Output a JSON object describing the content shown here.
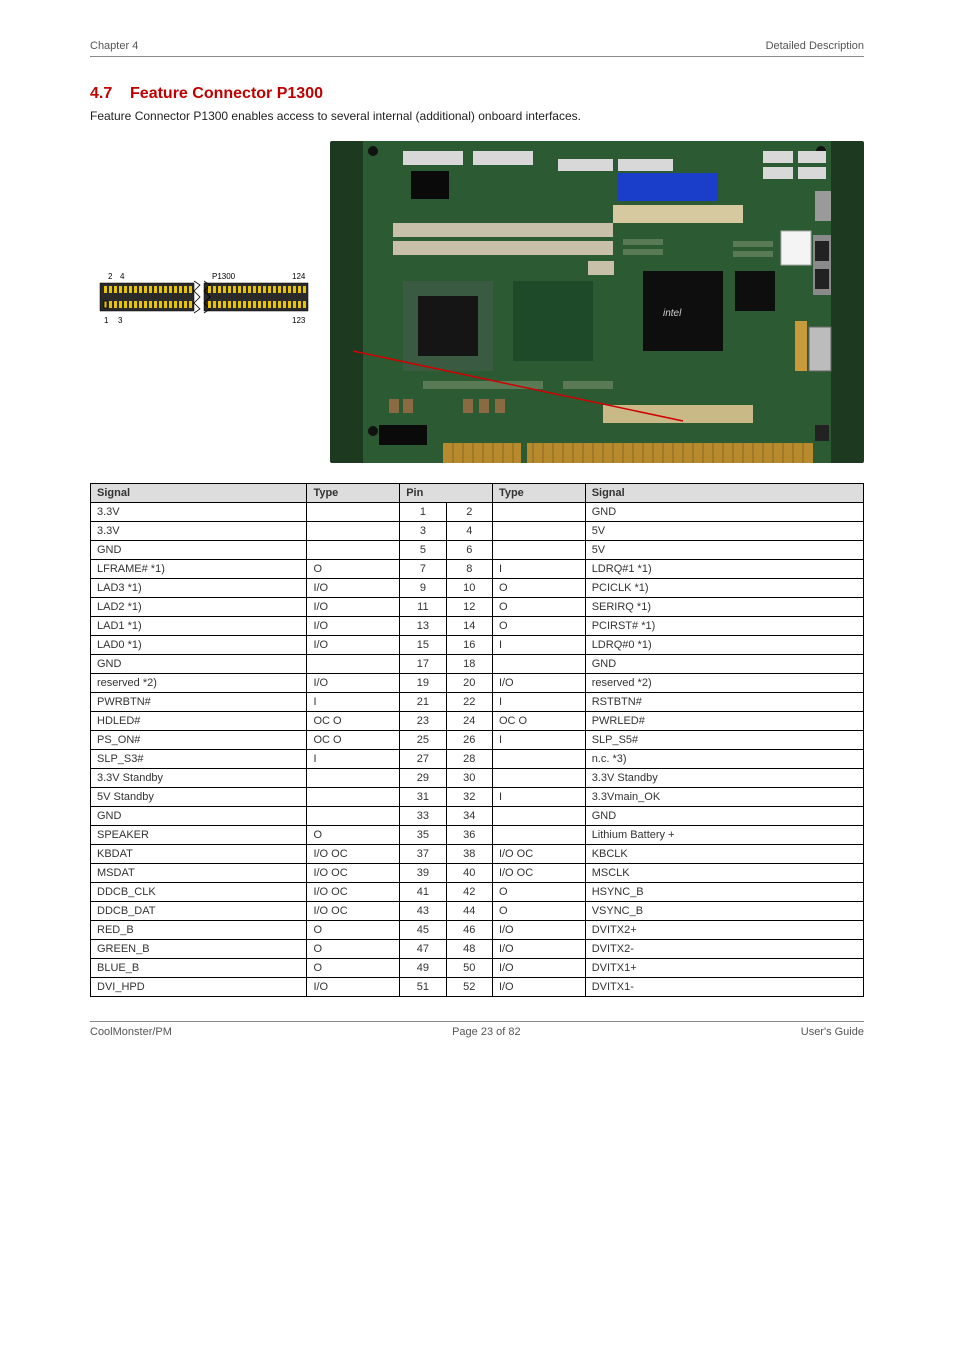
{
  "header": {
    "left": "Chapter 4",
    "right": "Detailed Description"
  },
  "section": {
    "number": "4.7",
    "title": "Feature Connector P1300",
    "subtitle": "Feature Connector P1300 enables access to several internal (additional) onboard interfaces."
  },
  "diagram": {
    "label_top_left": "2",
    "label_top_left2": "4",
    "label_top_right": "124",
    "label_ref": "P1300",
    "label_bot_left": "1",
    "label_bot_left2": "3",
    "label_bot_right": "123"
  },
  "table": {
    "columns": [
      "Signal",
      "Type",
      "Pin",
      "Pin2",
      "Type2",
      "Signal2"
    ],
    "headers": [
      "Signal",
      "Type",
      "Pin",
      "",
      "Type",
      "Signal"
    ],
    "rows": [
      [
        "3.3V",
        "",
        "1",
        "2",
        "",
        "GND"
      ],
      [
        "3.3V",
        "",
        "3",
        "4",
        "",
        "5V"
      ],
      [
        "GND",
        "",
        "5",
        "6",
        "",
        "5V"
      ],
      [
        "LFRAME# *1)",
        "O",
        "7",
        "8",
        "I",
        "LDRQ#1 *1)"
      ],
      [
        "LAD3 *1)",
        "I/O",
        "9",
        "10",
        "O",
        "PCICLK *1)"
      ],
      [
        "LAD2 *1)",
        "I/O",
        "11",
        "12",
        "O",
        "SERIRQ *1)"
      ],
      [
        "LAD1 *1)",
        "I/O",
        "13",
        "14",
        "O",
        "PCIRST# *1)"
      ],
      [
        "LAD0 *1)",
        "I/O",
        "15",
        "16",
        "I",
        "LDRQ#0 *1)"
      ],
      [
        "GND",
        "",
        "17",
        "18",
        "",
        "GND"
      ],
      [
        "reserved *2)",
        "I/O",
        "19",
        "20",
        "I/O",
        "reserved *2)"
      ],
      [
        "PWRBTN#",
        "I",
        "21",
        "22",
        "I",
        "RSTBTN#"
      ],
      [
        "HDLED#",
        "OC O",
        "23",
        "24",
        "OC O",
        "PWRLED#"
      ],
      [
        "PS_ON#",
        "OC O",
        "25",
        "26",
        "I",
        "SLP_S5#"
      ],
      [
        "SLP_S3#",
        "I",
        "27",
        "28",
        "",
        "n.c. *3)"
      ],
      [
        "3.3V Standby",
        "",
        "29",
        "30",
        "",
        "3.3V Standby"
      ],
      [
        "5V Standby",
        "",
        "31",
        "32",
        "I",
        "3.3Vmain_OK"
      ],
      [
        "GND",
        "",
        "33",
        "34",
        "",
        "GND"
      ],
      [
        "SPEAKER",
        "O",
        "35",
        "36",
        "",
        "Lithium Battery +"
      ],
      [
        "KBDAT",
        "I/O OC",
        "37",
        "38",
        "I/O OC",
        "KBCLK"
      ],
      [
        "MSDAT",
        "I/O OC",
        "39",
        "40",
        "I/O OC",
        "MSCLK"
      ],
      [
        "DDCB_CLK",
        "I/O OC",
        "41",
        "42",
        "O",
        "HSYNC_B"
      ],
      [
        "DDCB_DAT",
        "I/O OC",
        "43",
        "44",
        "O",
        "VSYNC_B"
      ],
      [
        "RED_B",
        "O",
        "45",
        "46",
        "I/O",
        "DVITX2+"
      ],
      [
        "GREEN_B",
        "O",
        "47",
        "48",
        "I/O",
        "DVITX2-"
      ],
      [
        "BLUE_B",
        "O",
        "49",
        "50",
        "I/O",
        "DVITX1+"
      ],
      [
        "DVI_HPD",
        "I/O",
        "51",
        "52",
        "I/O",
        "DVITX1-"
      ]
    ]
  },
  "footer": {
    "left": "CoolMonster/PM",
    "center": "Page 23 of 82",
    "right": "User's Guide"
  }
}
